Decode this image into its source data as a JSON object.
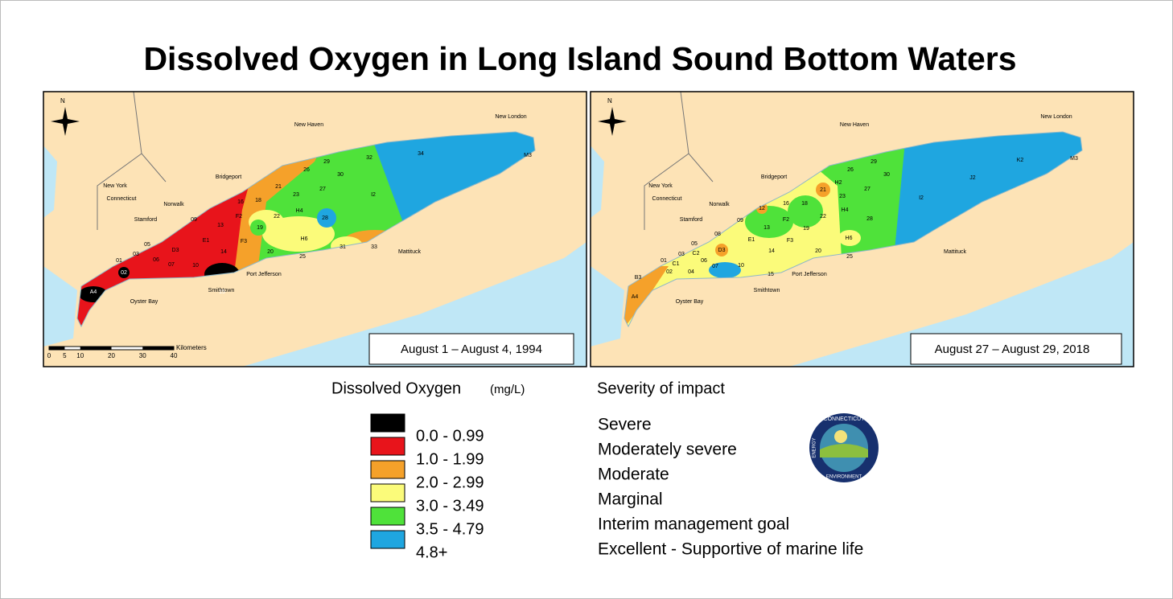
{
  "title": "Dissolved Oxygen in Long Island Sound Bottom Waters",
  "compass": "N",
  "maps": [
    {
      "date": "August 1 – August 4, 1994",
      "places": [
        "New Haven",
        "New London",
        "New York",
        "Connecticut",
        "Bridgeport",
        "Norwalk",
        "Stamford",
        "Mattituck",
        "Port Jefferson",
        "Smithtown",
        "Oyster Bay"
      ],
      "stations": [
        "A4",
        "02",
        "15",
        "09",
        "E1",
        "F2",
        "16",
        "18",
        "13",
        "D3",
        "14",
        "10",
        "07",
        "06",
        "05",
        "03",
        "01",
        "21",
        "26",
        "29",
        "30",
        "32",
        "34",
        "M3",
        "I2",
        "23",
        "27",
        "22",
        "19",
        "H4",
        "28",
        "H6",
        "F3",
        "20",
        "25",
        "31",
        "33"
      ]
    },
    {
      "date": "August 27 – August 29, 2018",
      "places": [
        "New Haven",
        "New London",
        "New York",
        "Connecticut",
        "Bridgeport",
        "Norwalk",
        "Stamford",
        "Mattituck",
        "Port Jefferson",
        "Smithtown",
        "Oyster Bay"
      ],
      "stations": [
        "A4",
        "B3",
        "01",
        "02",
        "C1",
        "03",
        "C2",
        "04",
        "05",
        "06",
        "07",
        "08",
        "D3",
        "09",
        "10",
        "E1",
        "12",
        "13",
        "14",
        "15",
        "16",
        "18",
        "F2",
        "F3",
        "19",
        "20",
        "21",
        "22",
        "23",
        "H2",
        "H4",
        "H6",
        "25",
        "26",
        "27",
        "28",
        "29",
        "30",
        "I2",
        "J2",
        "K2",
        "M3"
      ]
    }
  ],
  "scale": {
    "label": "Kilometers",
    "ticks": [
      0,
      5,
      10,
      20,
      30,
      40
    ]
  },
  "legend": {
    "title": "Dissolved Oxygen",
    "unit": "(mg/L)",
    "items": [
      {
        "range": "0.0 - 0.99",
        "color": "#000000"
      },
      {
        "range": "1.0 - 1.99",
        "color": "#e8141b"
      },
      {
        "range": "2.0 - 2.99",
        "color": "#f5a12a"
      },
      {
        "range": "3.0 - 3.49",
        "color": "#fbfb7a"
      },
      {
        "range": "3.5 - 4.79",
        "color": "#4fe23a"
      },
      {
        "range": "4.8+",
        "color": "#1fa6e0"
      }
    ]
  },
  "severity": {
    "title": "Severity of impact",
    "items": [
      "Severe",
      "Moderately severe",
      "Moderate",
      "Marginal",
      "Interim management goal",
      "Excellent - Supportive of marine life"
    ]
  },
  "logo": {
    "top": "CONNECTICUT",
    "left": "ENERGY",
    "bottom": "ENVIRONMENT"
  }
}
